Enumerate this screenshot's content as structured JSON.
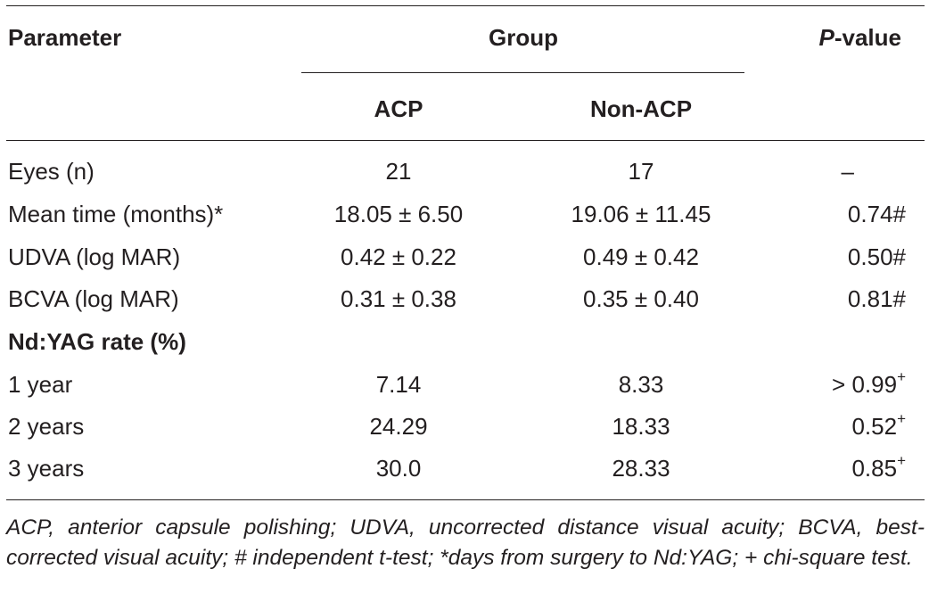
{
  "table": {
    "header": {
      "parameter": "Parameter",
      "group": "Group",
      "p_value_italic": "P",
      "p_value_rest": "-value",
      "acp": "ACP",
      "non_acp": "Non-ACP"
    },
    "rows": [
      {
        "label": "Eyes (n)",
        "acp": "21",
        "non_acp": "17",
        "p": "–",
        "p_sup": ""
      },
      {
        "label": "Mean time (months)*",
        "acp": "18.05 ± 6.50",
        "non_acp": "19.06 ± 11.45",
        "p": "0.74#",
        "p_sup": ""
      },
      {
        "label": "UDVA (log MAR)",
        "acp": "0.42 ± 0.22",
        "non_acp": "0.49 ± 0.42",
        "p": "0.50#",
        "p_sup": ""
      },
      {
        "label": "BCVA (log MAR)",
        "acp": "0.31 ± 0.38",
        "non_acp": "0.35 ± 0.40",
        "p": "0.81#",
        "p_sup": ""
      }
    ],
    "section_label": "Nd:YAG rate (%)",
    "yag_rows": [
      {
        "label": "1 year",
        "acp": "7.14",
        "non_acp": "8.33",
        "p": "> 0.99",
        "p_sup": "+"
      },
      {
        "label": "2 years",
        "acp": "24.29",
        "non_acp": "18.33",
        "p": "0.52",
        "p_sup": "+"
      },
      {
        "label": "3 years",
        "acp": "30.0",
        "non_acp": "28.33",
        "p": "0.85",
        "p_sup": "+"
      }
    ]
  },
  "footnote": "ACP, anterior capsule polishing; UDVA, uncorrected distance visual acuity; BCVA, best-corrected visual acuity; # independent t-test; *days from surgery to Nd:YAG; + chi-square test."
}
